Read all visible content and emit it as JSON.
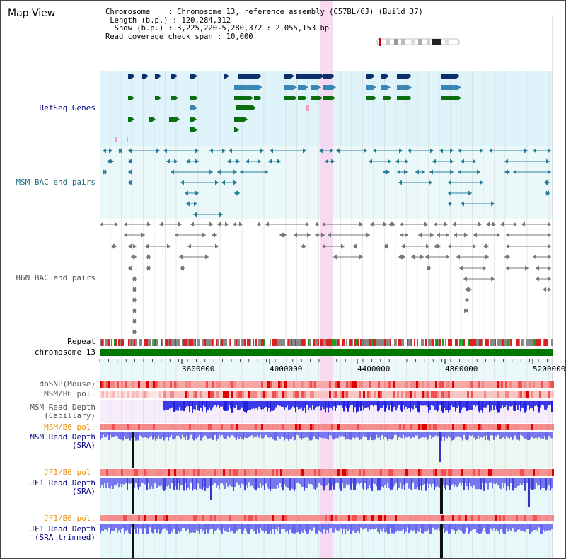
{
  "page": {
    "title": "Map View"
  },
  "info": {
    "chromosome_key": "Chromosome",
    "chromosome_value": "Chromosome 13, reference assembly (C57BL/6J) (Build 37)",
    "length_key": "Length (b.p.)",
    "length_value": "120,284,312",
    "show_key": "Show (b.p.)",
    "show_value": "3,225,220-5,280,372 : 2,055,153 bp",
    "span_key": "Read coverage check span",
    "span_value": "10,000"
  },
  "tracks": {
    "refseq": "RefSeq Genes",
    "msm_bac": "MSM BAC end pairs",
    "b6n_bac": "B6N BAC end pairs",
    "repeat": "Repeat",
    "chromosome": "chromosome 13",
    "dbsnp": "dbSNP(Mouse)",
    "msm_b6_pol_1": "MSM/B6 pol.",
    "msm_read_depth_cap": "MSM Read Depth\n(Capillary)",
    "msm_b6_pol_2": "MSM/B6 pol.",
    "msm_read_depth_sra": "MSM Read Depth\n(SRA)",
    "jf1_b6_pol_1": "JF1/B6 pol.",
    "jf1_read_depth_sra": "JF1 Read Depth\n(SRA)",
    "jf1_b6_pol_2": "JF1/B6 pol.",
    "jf1_read_depth_trim": "JF1 Read Depth\n(SRA trimmed)"
  },
  "axis": {
    "ticks": [
      "3600000",
      "4000000",
      "4400000",
      "4800000",
      "5200000"
    ]
  },
  "colors": {
    "refseq_bg": "#dff3fb",
    "bac_bg": "#eaf8fa",
    "highlight": "#f7d6f0",
    "gene_dark": "#0a2f6b",
    "gene_mid": "#3b86b5",
    "gene_green": "#0a6e10",
    "chromosome_bar": "#007700",
    "label_blue": "#000080",
    "label_teal": "#1e6a80",
    "label_orange": "#e8900a",
    "depth_blue": "#2222dd",
    "depth_light": "#7777ee"
  }
}
